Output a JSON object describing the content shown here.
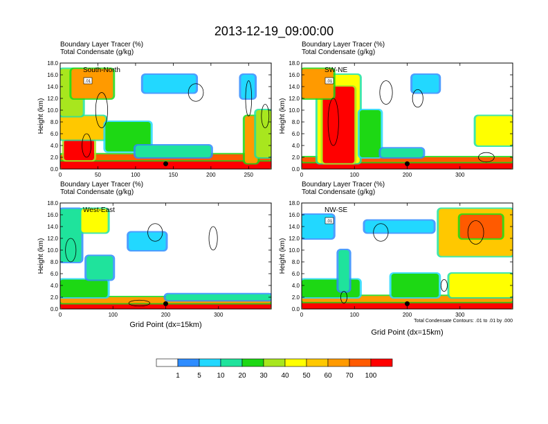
{
  "chart_data": {
    "type": "heatmap",
    "title": "2013-12-19_09:00:00",
    "panels": [
      {
        "id": "south-north",
        "label": "South-North",
        "title_line1": "Boundary Layer Tracer   (%)",
        "title_line2": "Total Condensate   (g/kg)",
        "ylabel": "Height (km)",
        "xlabel": "",
        "xlim": [
          0,
          280
        ],
        "ylim": [
          0,
          18
        ],
        "xticks": [
          0,
          50,
          100,
          150,
          200,
          250
        ],
        "yticks": [
          "0.0",
          "2.0",
          "4.0",
          "6.0",
          "8.0",
          "10.0",
          "12.0",
          "14.0",
          "16.0",
          "18.0"
        ],
        "marker_x": 140,
        "contour_label": ".01",
        "footnote": "",
        "features": [
          {
            "x": [
              0,
              280
            ],
            "z": [
              0,
              1.5
            ],
            "level": 100
          },
          {
            "x": [
              0,
              280
            ],
            "z": [
              1.5,
              2.5
            ],
            "level": 70
          },
          {
            "x": [
              5,
              45
            ],
            "z": [
              1.5,
              5
            ],
            "level": 100
          },
          {
            "x": [
              0,
              60
            ],
            "z": [
              5,
              9
            ],
            "level": 50
          },
          {
            "x": [
              0,
              30
            ],
            "z": [
              9,
              17
            ],
            "level": 30
          },
          {
            "x": [
              15,
              70
            ],
            "z": [
              12,
              17
            ],
            "level": 60
          },
          {
            "x": [
              60,
              120
            ],
            "z": [
              3,
              8
            ],
            "level": 20
          },
          {
            "x": [
              100,
              200
            ],
            "z": [
              2,
              4
            ],
            "level": 10
          },
          {
            "x": [
              245,
              262
            ],
            "z": [
              1,
              9
            ],
            "level": 60
          },
          {
            "x": [
              260,
              280
            ],
            "z": [
              2,
              10
            ],
            "level": 30
          },
          {
            "x": [
              110,
              180
            ],
            "z": [
              13,
              16
            ],
            "level": 5
          },
          {
            "x": [
              240,
              258
            ],
            "z": [
              12,
              16
            ],
            "level": 5
          }
        ],
        "contours": [
          {
            "cx": 55,
            "cz": 10,
            "rx": 8,
            "rz": 3
          },
          {
            "cx": 35,
            "cz": 4,
            "rx": 6,
            "rz": 2
          },
          {
            "cx": 180,
            "cz": 13,
            "rx": 10,
            "rz": 1.5
          },
          {
            "cx": 250,
            "cz": 12,
            "rx": 4,
            "rz": 3
          },
          {
            "cx": 272,
            "cz": 9,
            "rx": 5,
            "rz": 2
          }
        ]
      },
      {
        "id": "sw-ne",
        "label": "SW-NE",
        "title_line1": "Boundary Layer Tracer   (%)",
        "title_line2": "Total Condensate   (g/kg)",
        "ylabel": "Height (km)",
        "xlabel": "",
        "xlim": [
          0,
          400
        ],
        "ylim": [
          0,
          18
        ],
        "xticks": [
          0,
          100,
          200,
          300
        ],
        "yticks": [
          "0.0",
          "2.0",
          "4.0",
          "6.0",
          "8.0",
          "10.0",
          "12.0",
          "14.0",
          "16.0",
          "18.0"
        ],
        "marker_x": 200,
        "contour_label": ".01",
        "footnote": "",
        "features": [
          {
            "x": [
              0,
              400
            ],
            "z": [
              0,
              1.2
            ],
            "level": 100
          },
          {
            "x": [
              0,
              400
            ],
            "z": [
              1.2,
              2
            ],
            "level": 70
          },
          {
            "x": [
              30,
              110
            ],
            "z": [
              1,
              16
            ],
            "level": 40
          },
          {
            "x": [
              40,
              100
            ],
            "z": [
              1,
              14
            ],
            "level": 100
          },
          {
            "x": [
              0,
              60
            ],
            "z": [
              12,
              17
            ],
            "level": 60
          },
          {
            "x": [
              110,
              150
            ],
            "z": [
              2,
              10
            ],
            "level": 20
          },
          {
            "x": [
              150,
              230
            ],
            "z": [
              2,
              3.5
            ],
            "level": 10
          },
          {
            "x": [
              330,
              400
            ],
            "z": [
              4,
              9
            ],
            "level": 40
          },
          {
            "x": [
              210,
              260
            ],
            "z": [
              13,
              16
            ],
            "level": 5
          }
        ],
        "contours": [
          {
            "cx": 60,
            "cz": 8,
            "rx": 10,
            "rz": 4
          },
          {
            "cx": 160,
            "cz": 13,
            "rx": 12,
            "rz": 2
          },
          {
            "cx": 220,
            "cz": 12,
            "rx": 10,
            "rz": 1.5
          },
          {
            "cx": 350,
            "cz": 2,
            "rx": 15,
            "rz": 0.8
          }
        ]
      },
      {
        "id": "west-east",
        "label": "West-East",
        "title_line1": "Boundary Layer Tracer   (%)",
        "title_line2": "Total Condensate   (g/kg)",
        "ylabel": "Height (km)",
        "xlabel": "Grid Point (dx=15km)",
        "xlim": [
          0,
          400
        ],
        "ylim": [
          0,
          18
        ],
        "xticks": [
          0,
          100,
          200,
          300
        ],
        "yticks": [
          "0.0",
          "2.0",
          "4.0",
          "6.0",
          "8.0",
          "10.0",
          "12.0",
          "14.0",
          "16.0",
          "18.0"
        ],
        "marker_x": 200,
        "contour_label": "",
        "footnote": "",
        "features": [
          {
            "x": [
              0,
              400
            ],
            "z": [
              0,
              1
            ],
            "level": 100
          },
          {
            "x": [
              0,
              400
            ],
            "z": [
              1,
              2
            ],
            "level": 60
          },
          {
            "x": [
              0,
              90
            ],
            "z": [
              2,
              5
            ],
            "level": 20
          },
          {
            "x": [
              0,
              40
            ],
            "z": [
              8,
              17
            ],
            "level": 10
          },
          {
            "x": [
              40,
              90
            ],
            "z": [
              13,
              17
            ],
            "level": 40
          },
          {
            "x": [
              50,
              100
            ],
            "z": [
              5,
              9
            ],
            "level": 10
          },
          {
            "x": [
              130,
              200
            ],
            "z": [
              10,
              13
            ],
            "level": 5
          },
          {
            "x": [
              200,
              400
            ],
            "z": [
              1.5,
              2.5
            ],
            "level": 10
          }
        ],
        "contours": [
          {
            "cx": 20,
            "cz": 10,
            "rx": 10,
            "rz": 2
          },
          {
            "cx": 180,
            "cz": 13,
            "rx": 14,
            "rz": 1.5
          },
          {
            "cx": 290,
            "cz": 12,
            "rx": 8,
            "rz": 2
          },
          {
            "cx": 150,
            "cz": 1,
            "rx": 20,
            "rz": 0.5
          }
        ]
      },
      {
        "id": "nw-se",
        "label": "NW-SE",
        "title_line1": "Boundary Layer Tracer   (%)",
        "title_line2": "Total Condensate   (g/kg)",
        "ylabel": "Height (km)",
        "xlabel": "Grid Point (dx=15km)",
        "xlim": [
          0,
          400
        ],
        "ylim": [
          0,
          18
        ],
        "xticks": [
          0,
          100,
          200,
          300
        ],
        "yticks": [
          "0.0",
          "2.0",
          "4.0",
          "6.0",
          "8.0",
          "10.0",
          "12.0",
          "14.0",
          "16.0",
          "18.0"
        ],
        "marker_x": 200,
        "contour_label": ".01",
        "footnote": "Total Condensate Contours: .01 to .01 by .000",
        "features": [
          {
            "x": [
              0,
              400
            ],
            "z": [
              0,
              1.2
            ],
            "level": 100
          },
          {
            "x": [
              0,
              400
            ],
            "z": [
              1.2,
              2.2
            ],
            "level": 60
          },
          {
            "x": [
              0,
              110
            ],
            "z": [
              2,
              5
            ],
            "level": 20
          },
          {
            "x": [
              70,
              90
            ],
            "z": [
              3,
              10
            ],
            "level": 10
          },
          {
            "x": [
              170,
              260
            ],
            "z": [
              2,
              6
            ],
            "level": 20
          },
          {
            "x": [
              280,
              400
            ],
            "z": [
              2,
              6
            ],
            "level": 40
          },
          {
            "x": [
              260,
              400
            ],
            "z": [
              9,
              17
            ],
            "level": 50
          },
          {
            "x": [
              300,
              380
            ],
            "z": [
              12,
              16
            ],
            "level": 70
          },
          {
            "x": [
              0,
              60
            ],
            "z": [
              12,
              16
            ],
            "level": 5
          },
          {
            "x": [
              120,
              250
            ],
            "z": [
              13,
              15
            ],
            "level": 5
          }
        ],
        "contours": [
          {
            "cx": 150,
            "cz": 13,
            "rx": 14,
            "rz": 1.5
          },
          {
            "cx": 270,
            "cz": 4,
            "rx": 6,
            "rz": 1
          },
          {
            "cx": 330,
            "cz": 13,
            "rx": 15,
            "rz": 2
          },
          {
            "cx": 80,
            "cz": 2,
            "rx": 6,
            "rz": 1
          }
        ]
      }
    ],
    "legend": {
      "levels": [
        "1",
        "5",
        "10",
        "20",
        "30",
        "40",
        "50",
        "60",
        "70",
        "100"
      ],
      "colors": [
        "#ffffff",
        "#2e8cff",
        "#22d8ff",
        "#1fe39c",
        "#1dd814",
        "#a8e61e",
        "#ffff00",
        "#ffc800",
        "#ff9a00",
        "#ff5a00",
        "#ff0000"
      ]
    },
    "contour_color": "#000000"
  }
}
